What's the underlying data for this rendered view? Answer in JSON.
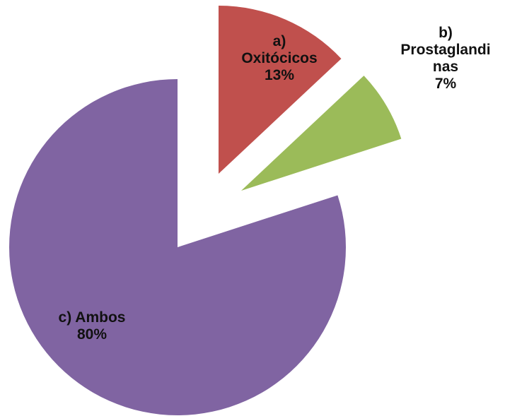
{
  "chart_data": {
    "type": "pie",
    "slices": [
      {
        "name": "a) Oxitócicos",
        "label_lines": [
          "a)",
          "Oxitócicos",
          "13%"
        ],
        "value": 13,
        "color": "#C0504D"
      },
      {
        "name": "b) Prostaglandinas",
        "label_lines": [
          "b)",
          "Prostaglandi",
          "nas",
          "7%"
        ],
        "value": 7,
        "color": "#9BBB59"
      },
      {
        "name": "c) Ambos",
        "label_lines": [
          "c) Ambos",
          "80%"
        ],
        "value": 80,
        "color": "#8064A2"
      }
    ],
    "exploded": true,
    "legend": "none"
  }
}
